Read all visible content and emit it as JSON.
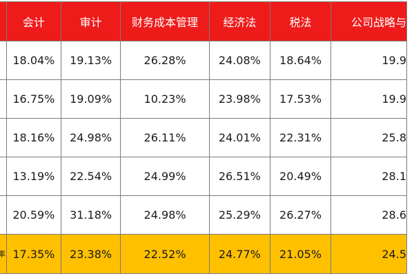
{
  "colors": {
    "header_bg": "#ee1b1b",
    "header_text": "#ffffff",
    "avg_row_bg": "#ffc000",
    "border": "#7a7a7a"
  },
  "table": {
    "headers": [
      "",
      "会计",
      "审计",
      "财务成本管理",
      "经济法",
      "税法",
      "公司战略与"
    ],
    "rows": [
      [
        "",
        "18.04%",
        "19.13%",
        "26.28%",
        "24.08%",
        "18.64%",
        "19.9"
      ],
      [
        "",
        "16.75%",
        "19.09%",
        "10.23%",
        "23.98%",
        "17.53%",
        "19.9"
      ],
      [
        "",
        "18.16%",
        "24.98%",
        "26.11%",
        "24.01%",
        "22.31%",
        "25.8"
      ],
      [
        "",
        "13.19%",
        "22.54%",
        "24.99%",
        "26.51%",
        "20.49%",
        "28.1"
      ],
      [
        "",
        "20.59%",
        "31.18%",
        "24.98%",
        "25.29%",
        "26.27%",
        "28.6"
      ]
    ],
    "average_row": [
      "率",
      "17.35%",
      "23.38%",
      "22.52%",
      "24.77%",
      "21.05%",
      "24.5"
    ]
  }
}
